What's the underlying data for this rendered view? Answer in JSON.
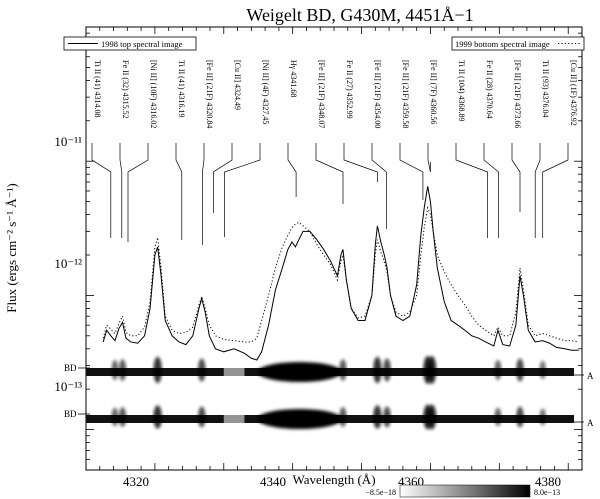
{
  "chart_data": {
    "type": "line",
    "title": "Weigelt BD, G430M, 4451Å−1",
    "xlabel": "Wavelength (Å)",
    "ylabel": "Flux (ergs cm⁻² s⁻¹ Å⁻¹)",
    "xlim": [
      4310,
      4382
    ],
    "ylim": [
      5e-14,
      1e-10
    ],
    "yscale": "log",
    "x_ticks": [
      4320,
      4330,
      4340,
      4350,
      4360,
      4370,
      4380
    ],
    "x_tick_labels": [
      "4320",
      "4340",
      "4360",
      "4380"
    ],
    "y_tick_labels": [
      "10⁻¹³",
      "10⁻¹²",
      "10⁻¹¹"
    ],
    "legend": [
      {
        "label": "1998 top spectral image",
        "style": "solid",
        "position": "top-left"
      },
      {
        "label": "1999 bottom spectral image",
        "style": "dotted",
        "position": "top-right"
      }
    ],
    "line_ids": [
      {
        "label": "Ti II (41) 4314.08",
        "wavelength": 4314.08,
        "tip": 4313.6
      },
      {
        "label": "Fe II (32) 4315.52",
        "wavelength": 4315.52,
        "tip": 4315.2
      },
      {
        "label": "[Ni II] (10F) 4316.02",
        "wavelength": 4316.02,
        "tip": 4316.1
      },
      {
        "label": "Ti II (41) 4316.19",
        "wavelength": 4316.19,
        "tip": 4323.9
      },
      {
        "label": "[Fe II] (21F) 4320.84",
        "wavelength": 4320.84,
        "tip": 4326.9
      },
      {
        "label": "[Cu II] 4324.49",
        "wavelength": 4324.49,
        "tip": 4328.5
      },
      {
        "label": "[Ni II] (4F) 4327.45",
        "wavelength": 4327.45,
        "tip": 4330.1
      },
      {
        "label": "Hγ 4341.68",
        "wavelength": 4341.68,
        "tip": 4340.5
      },
      {
        "label": "[Fe II] (21F) 4348.07",
        "wavelength": 4348.07,
        "tip": 4347.3
      },
      {
        "label": "Fe II (27) 4352.99",
        "wavelength": 4352.99,
        "tip": 4352.3
      },
      {
        "label": "[Fe II] (21F) 4354.00",
        "wavelength": 4354.0,
        "tip": 4353.6
      },
      {
        "label": "[Fe II] (21F) 4359.58",
        "wavelength": 4359.58,
        "tip": 4358.9
      },
      {
        "label": "[Fe II] (7F) 4360.56",
        "wavelength": 4360.56,
        "tip": 4360.0
      },
      {
        "label": "Ti II (104) 4368.89",
        "wavelength": 4368.89,
        "tip": 4368.3
      },
      {
        "label": "Fe II (28) 4370.64",
        "wavelength": 4370.64,
        "tip": 4369.9
      },
      {
        "label": "[Fe II] (21F) 4373.66",
        "wavelength": 4373.66,
        "tip": 4373.0
      },
      {
        "label": "Ti II (93) 4376.04",
        "wavelength": 4376.04,
        "tip": 4375.2
      },
      {
        "label": "[Cu II] (1F) 4376.92",
        "wavelength": 4376.92,
        "tip": 4376.3
      }
    ],
    "series": [
      {
        "name": "1998 top spectral image",
        "style": "solid",
        "x": [
          4312.5,
          4313,
          4313.6,
          4314.2,
          4314.8,
          4315.3,
          4315.8,
          4316.5,
          4317.5,
          4318.5,
          4319.3,
          4320.0,
          4320.4,
          4320.9,
          4321.5,
          4322.5,
          4323.5,
          4324.5,
          4325.5,
          4326.4,
          4326.8,
          4327.3,
          4327.9,
          4328.8,
          4330,
          4331.5,
          4333,
          4334,
          4334.8,
          4335.5,
          4336.5,
          4337.5,
          4338.5,
          4339.3,
          4339.9,
          4340.4,
          4340.9,
          4341.5,
          4342.5,
          4343.5,
          4344.5,
          4345.5,
          4346.5,
          4347.0,
          4347.3,
          4347.8,
          4348.5,
          4349.5,
          4350.5,
          4351.5,
          4352.0,
          4352.3,
          4352.8,
          4353.3,
          4353.7,
          4354.2,
          4355,
          4356,
          4357,
          4358.0,
          4358.6,
          4359.1,
          4359.6,
          4360.0,
          4360.4,
          4361.0,
          4362,
          4363,
          4364,
          4365,
          4366,
          4367,
          4368,
          4369.2,
          4369.8,
          4370.5,
          4371.5,
          4372.4,
          4373.0,
          4373.5,
          4374.2,
          4375.2,
          4376.3,
          4377.3,
          4378.3,
          4379.5,
          4380.5,
          4381.5
        ],
        "values": [
          4.5e-13,
          5.5e-13,
          5e-13,
          4.6e-13,
          5.7e-13,
          6.3e-13,
          4.8e-13,
          4.5e-13,
          4.4e-13,
          5e-13,
          8e-13,
          2e-12,
          2.3e-12,
          1.4e-12,
          6.5e-13,
          5e-13,
          4.5e-13,
          4.3e-13,
          5e-13,
          8e-13,
          9.5e-13,
          7.5e-13,
          5e-13,
          4e-13,
          3.8e-13,
          4e-13,
          3.7e-13,
          3.4e-13,
          3.3e-13,
          3.8e-13,
          6e-13,
          1.1e-12,
          1.6e-12,
          2.2e-12,
          2.5e-12,
          2.3e-12,
          2.6e-12,
          3e-12,
          3e-12,
          2.6e-12,
          2.2e-12,
          1.8e-12,
          1.4e-12,
          2e-12,
          2.2e-12,
          1.3e-12,
          8e-13,
          6.5e-13,
          6.5e-13,
          1e-12,
          2.4e-12,
          3.3e-12,
          2.5e-12,
          2e-12,
          1.6e-12,
          1e-12,
          7e-13,
          6.5e-13,
          7e-13,
          1.2e-12,
          2.8e-12,
          4.5e-12,
          6.5e-12,
          5e-12,
          3e-12,
          1.6e-12,
          9e-13,
          6.5e-13,
          6e-13,
          5.5e-13,
          5e-13,
          4.8e-13,
          4.5e-13,
          4.2e-13,
          5.5e-13,
          4.3e-13,
          4.2e-13,
          6e-13,
          1.4e-12,
          1e-12,
          5.5e-13,
          4.5e-13,
          4.6e-13,
          4.4e-13,
          4.1e-13,
          4e-13,
          3.9e-13,
          3.9e-13
        ]
      },
      {
        "name": "1999 bottom spectral image",
        "style": "dotted",
        "x": [
          4312.5,
          4313,
          4313.6,
          4314.2,
          4314.8,
          4315.3,
          4315.8,
          4316.5,
          4317.5,
          4318.5,
          4319.3,
          4320.0,
          4320.4,
          4320.9,
          4321.5,
          4322.5,
          4323.5,
          4324.5,
          4325.5,
          4326.4,
          4326.8,
          4327.3,
          4327.9,
          4328.8,
          4330,
          4331.5,
          4333,
          4334,
          4334.8,
          4335.5,
          4336.5,
          4337.5,
          4338.5,
          4339.3,
          4339.9,
          4340.4,
          4340.9,
          4341.5,
          4342.5,
          4343.5,
          4344.5,
          4345.5,
          4346.5,
          4347.0,
          4347.3,
          4347.8,
          4348.5,
          4349.5,
          4350.5,
          4351.5,
          4352.0,
          4352.3,
          4352.8,
          4353.3,
          4353.7,
          4354.2,
          4355,
          4356,
          4357,
          4358.0,
          4358.6,
          4359.1,
          4359.6,
          4360.0,
          4360.4,
          4361.0,
          4362,
          4363,
          4364,
          4365,
          4366,
          4367,
          4368,
          4369.2,
          4369.8,
          4370.5,
          4371.5,
          4372.4,
          4373.0,
          4373.5,
          4374.2,
          4375.2,
          4376.3,
          4377.3,
          4378.3,
          4379.5,
          4380.5,
          4381.5
        ],
        "values": [
          4.8e-13,
          6e-13,
          5.6e-13,
          5.2e-13,
          6.2e-13,
          7e-13,
          5.3e-13,
          5e-13,
          5e-13,
          5.8e-13,
          9e-13,
          2.3e-12,
          2.7e-12,
          1.6e-12,
          7e-13,
          5.5e-13,
          5.2e-13,
          5.3e-13,
          5.8e-13,
          8.5e-13,
          9.8e-13,
          8e-13,
          6e-13,
          5e-13,
          4.7e-13,
          4.6e-13,
          4.5e-13,
          4.5e-13,
          4.8e-13,
          6.5e-13,
          1e-12,
          1.6e-12,
          2.3e-12,
          2.8e-12,
          3.2e-12,
          3.4e-12,
          3.5e-12,
          3.3e-12,
          3e-12,
          2.4e-12,
          2e-12,
          1.7e-12,
          1.3e-12,
          1.8e-12,
          2e-12,
          1.3e-12,
          8e-13,
          6.8e-13,
          7e-13,
          1e-12,
          2e-12,
          2.6e-12,
          2.1e-12,
          1.8e-12,
          1.5e-12,
          1e-12,
          7.5e-13,
          7e-13,
          7.5e-13,
          1e-12,
          2e-12,
          3.2e-12,
          4.5e-12,
          4e-12,
          3e-12,
          2e-12,
          1.5e-12,
          1.2e-12,
          1e-12,
          8.5e-13,
          7e-13,
          6e-13,
          5.5e-13,
          5e-13,
          5.8e-13,
          5e-13,
          5e-13,
          7.5e-13,
          1.6e-12,
          1.1e-12,
          6e-13,
          5e-13,
          5.2e-13,
          5e-13,
          4.8e-13,
          4.6e-13,
          4.6e-13,
          4.5e-13
        ]
      }
    ],
    "spectral_images": [
      {
        "left_label": "BD",
        "right_label": "A"
      },
      {
        "left_label": "BD",
        "right_label": "A"
      }
    ],
    "colorbar": {
      "min_label": "−8.5e−18",
      "max_label": "8.0e−13"
    }
  }
}
